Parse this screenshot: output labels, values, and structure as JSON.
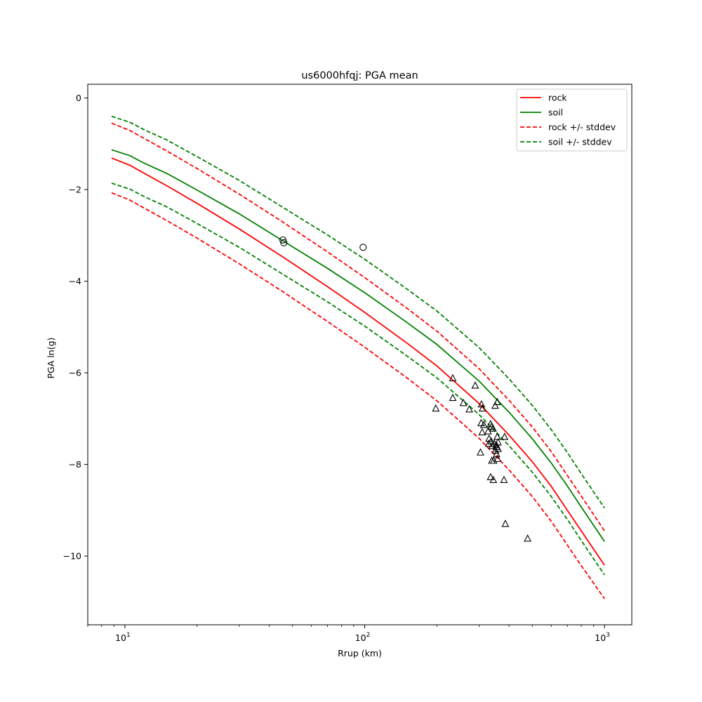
{
  "chart_data": {
    "type": "line",
    "title": "us6000hfqj: PGA mean",
    "xlabel": "Rrup (km)",
    "ylabel": "PGA ln(g)",
    "xscale": "log",
    "xlim": [
      7,
      1300
    ],
    "ylim": [
      -11.5,
      0.3
    ],
    "xticks": [
      10,
      100,
      1000
    ],
    "xtick_labels": [
      {
        "base": "10",
        "exp": "1"
      },
      {
        "base": "10",
        "exp": "2"
      },
      {
        "base": "10",
        "exp": "3"
      }
    ],
    "yticks": [
      0,
      -2,
      -4,
      -6,
      -8,
      -10
    ],
    "ytick_labels": [
      "0",
      "−2",
      "−4",
      "−6",
      "−8",
      "−10"
    ],
    "grid": false,
    "legend_position": "top-right",
    "series": [
      {
        "name": "rock",
        "color": "#ff0000",
        "style": "solid",
        "x": [
          8.8,
          10.5,
          12,
          15,
          20,
          30,
          45,
          70,
          100,
          150,
          200,
          300,
          400,
          500,
          600,
          700,
          800,
          1000
        ],
        "y": [
          -1.31,
          -1.47,
          -1.64,
          -1.92,
          -2.3,
          -2.86,
          -3.45,
          -4.12,
          -4.68,
          -5.35,
          -5.85,
          -6.67,
          -7.36,
          -7.94,
          -8.48,
          -9.0,
          -9.45,
          -10.2
        ]
      },
      {
        "name": "soil",
        "color": "#008000",
        "style": "solid",
        "x": [
          8.8,
          10.5,
          12,
          15,
          20,
          30,
          45,
          70,
          100,
          150,
          200,
          300,
          400,
          500,
          600,
          700,
          800,
          1000
        ],
        "y": [
          -1.13,
          -1.26,
          -1.42,
          -1.65,
          -2.01,
          -2.53,
          -3.1,
          -3.72,
          -4.25,
          -4.9,
          -5.38,
          -6.18,
          -6.86,
          -7.44,
          -7.97,
          -8.47,
          -8.93,
          -9.68
        ]
      },
      {
        "name": "rock +/- stddev",
        "color": "#ff0000",
        "style": "dashed",
        "x": [
          8.8,
          10.5,
          12,
          15,
          20,
          30,
          45,
          70,
          100,
          150,
          200,
          300,
          400,
          500,
          600,
          700,
          800,
          1000
        ],
        "y": [
          -0.55,
          -0.71,
          -0.88,
          -1.16,
          -1.54,
          -2.1,
          -2.69,
          -3.36,
          -3.92,
          -4.59,
          -5.09,
          -5.91,
          -6.6,
          -7.18,
          -7.72,
          -8.24,
          -8.69,
          -9.45
        ]
      },
      {
        "name": "",
        "color": "#ff0000",
        "style": "dashed",
        "x": [
          8.8,
          10.5,
          12,
          15,
          20,
          30,
          45,
          70,
          100,
          150,
          200,
          300,
          400,
          500,
          600,
          700,
          800,
          1000
        ],
        "y": [
          -2.07,
          -2.23,
          -2.4,
          -2.68,
          -3.06,
          -3.62,
          -4.21,
          -4.88,
          -5.44,
          -6.11,
          -6.61,
          -7.43,
          -8.12,
          -8.7,
          -9.24,
          -9.76,
          -10.21,
          -10.93
        ]
      },
      {
        "name": "soil +/- stddev",
        "color": "#008000",
        "style": "dashed",
        "x": [
          8.8,
          10.5,
          12,
          15,
          20,
          30,
          45,
          70,
          100,
          150,
          200,
          300,
          400,
          500,
          600,
          700,
          800,
          1000
        ],
        "y": [
          -0.4,
          -0.53,
          -0.69,
          -0.92,
          -1.28,
          -1.8,
          -2.37,
          -2.99,
          -3.52,
          -4.17,
          -4.65,
          -5.45,
          -6.13,
          -6.71,
          -7.24,
          -7.74,
          -8.2,
          -8.95
        ]
      },
      {
        "name": "",
        "color": "#008000",
        "style": "dashed",
        "x": [
          8.8,
          10.5,
          12,
          15,
          20,
          30,
          45,
          70,
          100,
          150,
          200,
          300,
          400,
          500,
          600,
          700,
          800,
          1000
        ],
        "y": [
          -1.86,
          -1.99,
          -2.15,
          -2.38,
          -2.74,
          -3.26,
          -3.83,
          -4.45,
          -4.98,
          -5.63,
          -6.11,
          -6.91,
          -7.59,
          -8.17,
          -8.7,
          -9.2,
          -9.66,
          -10.41
        ]
      }
    ],
    "circle_points": {
      "x": [
        45.6,
        46.0,
        98.5
      ],
      "y": [
        -3.1,
        -3.16,
        -3.26
      ]
    },
    "triangle_points": {
      "x": [
        233,
        289,
        198,
        233,
        258,
        273,
        307,
        310,
        350,
        357,
        306,
        335,
        314,
        338,
        309,
        327,
        343,
        383,
        357,
        330,
        337,
        360,
        347,
        354,
        329,
        340,
        355,
        360,
        351,
        355,
        304,
        358,
        339,
        345,
        335,
        344,
        381,
        386,
        478
      ],
      "y": [
        -6.12,
        -6.28,
        -6.78,
        -6.55,
        -6.66,
        -6.8,
        -6.69,
        -6.78,
        -6.72,
        -6.64,
        -7.1,
        -7.12,
        -7.14,
        -7.18,
        -7.3,
        -7.28,
        -7.22,
        -7.4,
        -7.4,
        -7.44,
        -7.5,
        -7.52,
        -7.55,
        -7.58,
        -7.55,
        -7.6,
        -7.62,
        -7.66,
        -7.7,
        -7.78,
        -7.74,
        -7.88,
        -7.92,
        -7.92,
        -8.28,
        -8.34,
        -8.34,
        -9.3,
        -9.62
      ]
    }
  }
}
